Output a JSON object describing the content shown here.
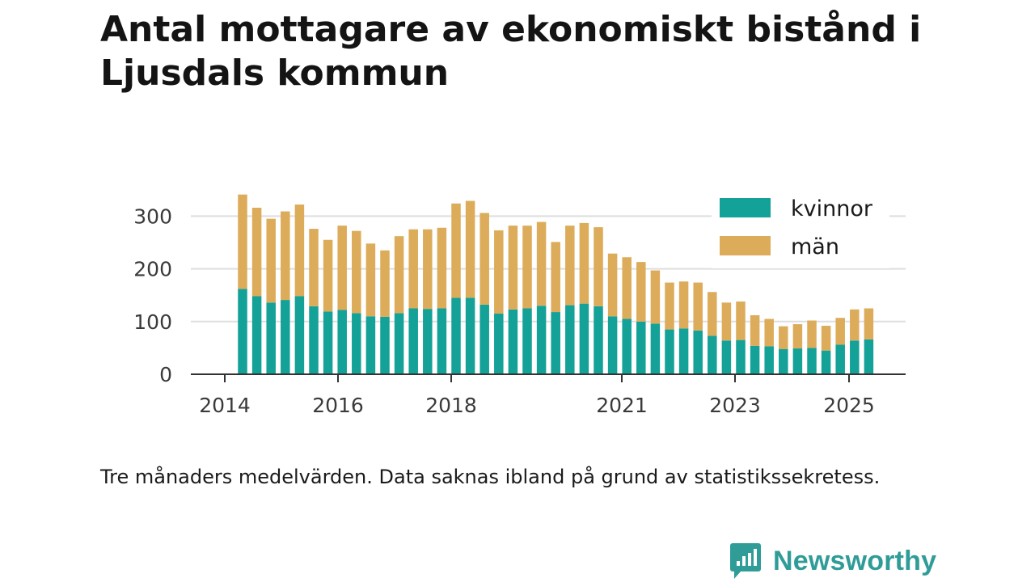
{
  "title": "Antal mottagare av ekonomiskt bistånd i Ljusdals kommun",
  "note": "Tre månaders medelvärden. Data saknas ibland på grund av statistikssekretess.",
  "brand": {
    "name": "Newsworthy",
    "color": "#2f9c98",
    "icon": "newsworthy-logo-icon"
  },
  "chart_data": {
    "type": "bar",
    "stacked": true,
    "title": "Antal mottagare av ekonomiskt bistånd i Ljusdals kommun",
    "xlabel": "",
    "ylabel": "",
    "ylim": [
      0,
      340
    ],
    "yticks": [
      0,
      100,
      200,
      300
    ],
    "grid": true,
    "legend_position": "top-right",
    "x_tick_labels": [
      "2014",
      "2016",
      "2018",
      "2021",
      "2023",
      "2025"
    ],
    "categories": [
      "2014-Q2",
      "2014-Q3",
      "2014-Q4",
      "2015-Q1",
      "2015-Q2",
      "2015-Q3",
      "2015-Q4",
      "2016-Q1",
      "2016-Q2",
      "2016-Q3",
      "2016-Q4",
      "2017-Q1",
      "2017-Q2",
      "2017-Q3",
      "2017-Q4",
      "2018-Q1",
      "2018-Q2",
      "2018-Q3",
      "2018-Q4",
      "2019-Q1",
      "2019-Q2",
      "2019-Q3",
      "2019-Q4",
      "2020-Q1",
      "2020-Q2",
      "2020-Q3",
      "2020-Q4",
      "2021-Q1",
      "2021-Q2",
      "2021-Q3",
      "2021-Q4",
      "2022-Q1",
      "2022-Q2",
      "2022-Q3",
      "2022-Q4",
      "2023-Q1",
      "2023-Q2",
      "2023-Q3",
      "2023-Q4",
      "2024-Q1",
      "2024-Q2",
      "2024-Q3",
      "2024-Q4",
      "2025-Q1",
      "2025-Q2"
    ],
    "series": [
      {
        "name": "kvinnor",
        "color": "#13a198",
        "values": [
          162,
          148,
          136,
          141,
          148,
          129,
          119,
          122,
          116,
          110,
          109,
          116,
          125,
          124,
          125,
          145,
          145,
          132,
          115,
          123,
          125,
          130,
          118,
          131,
          134,
          129,
          110,
          105,
          100,
          96,
          85,
          87,
          83,
          73,
          64,
          65,
          54,
          53,
          48,
          49,
          50,
          45,
          56,
          64,
          66
        ]
      },
      {
        "name": "män",
        "color": "#dcac5a",
        "values": [
          179,
          168,
          159,
          168,
          174,
          147,
          136,
          160,
          156,
          138,
          126,
          146,
          150,
          151,
          153,
          179,
          184,
          174,
          158,
          159,
          157,
          159,
          133,
          151,
          153,
          150,
          119,
          117,
          113,
          101,
          89,
          89,
          91,
          83,
          72,
          73,
          58,
          52,
          43,
          46,
          52,
          47,
          51,
          59,
          59
        ]
      }
    ]
  }
}
